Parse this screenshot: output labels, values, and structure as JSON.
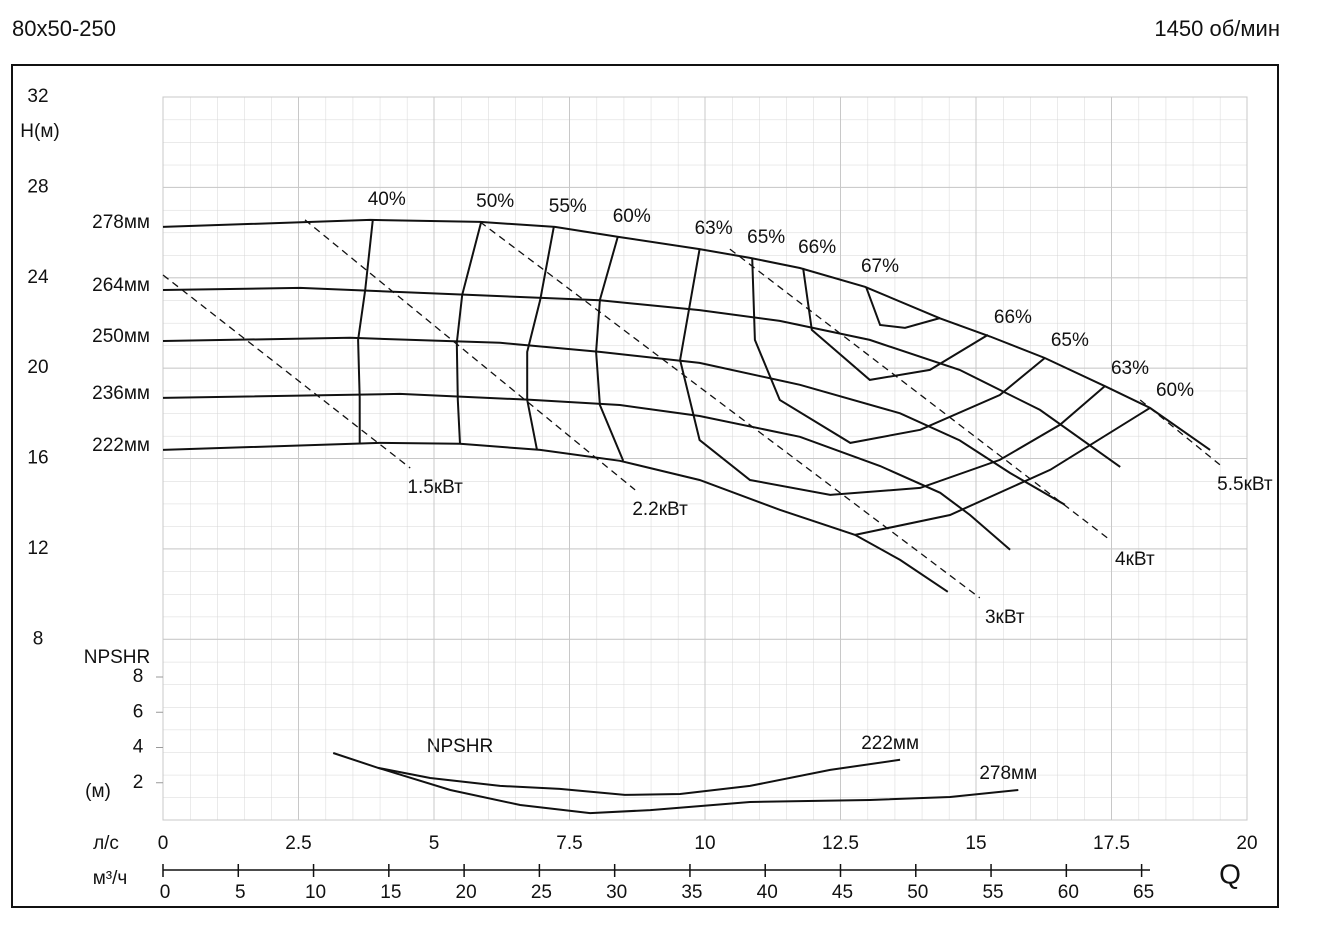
{
  "title": "80x50-250",
  "speed": "1450 об/мин",
  "chart_data": {
    "type": "line",
    "y_label": "H(м)",
    "x_label": "Q",
    "x_unit_label": "л/с",
    "x2_unit_label": "м³/ч",
    "xlim": [
      0,
      20
    ],
    "xticks": [
      0,
      2.5,
      5,
      7.5,
      10,
      12.5,
      15,
      17.5,
      20
    ],
    "x2lim": [
      0,
      72
    ],
    "x2ticks": [
      0,
      5,
      10,
      15,
      20,
      25,
      30,
      35,
      40,
      45,
      50,
      55,
      60,
      65
    ],
    "ylim": [
      0,
      32
    ],
    "yticks": [
      8,
      12,
      16,
      20,
      24,
      28,
      32
    ],
    "grid": true,
    "color": "#111111",
    "series": [
      {
        "name": "278мм",
        "x": [
          0,
          3.82,
          5.85,
          7.23,
          8.43,
          9.9,
          10.83,
          11.75,
          12.95,
          14.34,
          15.26,
          16.27,
          17.38,
          18.21,
          19.32
        ],
        "values": [
          26.25,
          26.56,
          26.47,
          26.25,
          25.8,
          25.27,
          24.88,
          24.43,
          23.6,
          22.2,
          21.4,
          20.45,
          19.2,
          18.24,
          16.38
        ]
      },
      {
        "name": "264мм",
        "x": [
          0,
          2.53,
          5.66,
          8.06,
          9.9,
          11.38,
          13.04,
          14.7,
          16.18,
          17.66
        ],
        "values": [
          23.46,
          23.55,
          23.24,
          23.0,
          22.57,
          22.09,
          21.25,
          19.92,
          18.15,
          15.63
        ]
      },
      {
        "name": "250мм",
        "x": [
          0,
          3.45,
          6.22,
          8.06,
          9.9,
          11.75,
          13.6,
          14.7,
          15.63,
          16.64
        ],
        "values": [
          21.2,
          21.34,
          21.12,
          20.72,
          20.23,
          19.26,
          18.0,
          16.8,
          15.36,
          13.95
        ]
      },
      {
        "name": "236мм",
        "x": [
          0,
          4.37,
          6.77,
          8.43,
          9.9,
          11.75,
          13.23,
          14.34,
          14.89,
          15.63
        ],
        "values": [
          18.68,
          18.86,
          18.6,
          18.37,
          17.88,
          16.96,
          15.67,
          14.48,
          13.5,
          11.96
        ]
      },
      {
        "name": "222мм",
        "x": [
          0,
          4.0,
          5.48,
          6.96,
          8.43,
          9.9,
          11.38,
          12.77,
          13.6,
          14.48
        ],
        "values": [
          16.38,
          16.69,
          16.65,
          16.38,
          15.9,
          15.05,
          13.73,
          12.62,
          11.51,
          10.1
        ]
      }
    ],
    "efficiency": [
      {
        "name": "40%",
        "x": [
          3.87,
          3.73,
          3.6,
          3.63,
          3.63
        ],
        "values": [
          26.56,
          23.46,
          21.25,
          18.68,
          16.69
        ]
      },
      {
        "name": "50%",
        "x": [
          5.87,
          5.52,
          5.42,
          5.44,
          5.48
        ],
        "values": [
          26.47,
          23.24,
          21.12,
          18.6,
          16.65
        ]
      },
      {
        "name": "55%",
        "x": [
          7.21,
          6.96,
          6.72,
          6.72,
          6.9
        ],
        "values": [
          26.25,
          23.02,
          20.72,
          18.6,
          16.38
        ]
      },
      {
        "name": "60%",
        "x": [
          8.39,
          8.06,
          7.99,
          8.06,
          8.49,
          null,
          12.77,
          14.52,
          16.37,
          18.21
        ],
        "values": [
          25.8,
          23.02,
          20.72,
          18.37,
          15.9,
          null,
          12.62,
          13.5,
          15.5,
          18.24
        ]
      },
      {
        "name": "63%",
        "x": [
          9.9,
          9.54,
          9.9,
          10.83,
          12.31,
          13.97,
          15.44,
          16.55,
          17.38
        ],
        "values": [
          25.27,
          20.36,
          16.82,
          15.05,
          14.39,
          14.7,
          15.94,
          17.49,
          19.21
        ]
      },
      {
        "name": "65%",
        "x": [
          10.87,
          10.92,
          11.38,
          12.68,
          13.97,
          15.44,
          16.27
        ],
        "values": [
          24.88,
          21.25,
          18.59,
          16.69,
          17.27,
          18.81,
          20.45
        ]
      },
      {
        "name": "66%",
        "x": [
          11.81,
          11.97,
          13.04,
          14.15,
          15.22
        ],
        "values": [
          24.43,
          21.69,
          19.48,
          19.92,
          21.47
        ]
      },
      {
        "name": "67%",
        "x": [
          12.97,
          13.23,
          13.69,
          14.34
        ],
        "values": [
          23.6,
          21.91,
          21.78,
          22.22
        ]
      }
    ],
    "power": [
      {
        "name": "1.5кВт",
        "x": [
          0,
          4.56
        ],
        "values": [
          24.12,
          15.58
        ]
      },
      {
        "name": "2.2кВт",
        "x": [
          2.62,
          8.71
        ],
        "values": [
          26.56,
          14.61
        ]
      },
      {
        "name": "3кВт",
        "x": [
          5.85,
          15.07
        ],
        "values": [
          26.47,
          9.83
        ]
      },
      {
        "name": "4кВт",
        "x": [
          10.46,
          17.47
        ],
        "values": [
          25.27,
          12.4
        ]
      },
      {
        "name": "5.5кВт",
        "x": [
          18.03,
          19.5
        ],
        "values": [
          18.59,
          15.72
        ]
      }
    ],
    "npshr": {
      "label": "NPSHR",
      "axis_label": "NPSHR",
      "unit": "(м)",
      "ylim": [
        0,
        8
      ],
      "yticks": [
        2,
        4,
        6,
        8
      ],
      "series": [
        {
          "name": "222мм",
          "x": [
            3.14,
            3.97,
            4.93,
            6.22,
            7.32,
            8.52,
            9.54,
            10.83,
            12.31,
            13.6
          ],
          "values": [
            3.69,
            2.84,
            2.27,
            1.82,
            1.65,
            1.31,
            1.36,
            1.82,
            2.73,
            3.3
          ]
        },
        {
          "name": "278мм",
          "x": [
            3.97,
            5.3,
            6.59,
            7.88,
            8.99,
            10.83,
            13.04,
            14.52,
            15.78
          ],
          "values": [
            2.84,
            1.59,
            0.74,
            0.28,
            0.45,
            0.91,
            1.02,
            1.19,
            1.59
          ]
        }
      ]
    }
  }
}
